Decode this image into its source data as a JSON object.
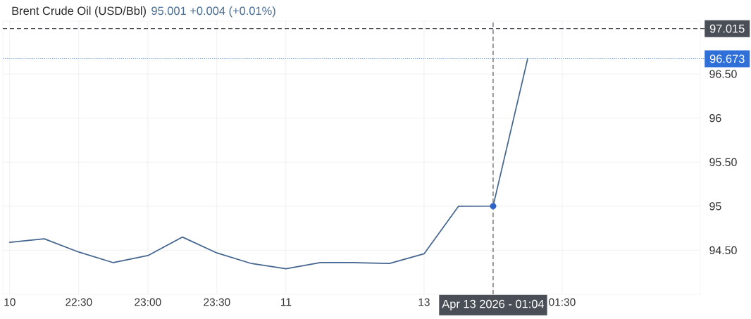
{
  "chart_data": {
    "type": "line",
    "title": "Brent Crude Oil (USD/Bbl)",
    "subtitle": "95.001 +0.004 (+0.01%)",
    "categories": [
      "10",
      null,
      "22:30",
      null,
      "23:00",
      null,
      "23:30",
      null,
      "11",
      null,
      null,
      null,
      "13",
      null,
      "Apr 13 2026 - 01:04",
      null,
      "01:30",
      null,
      null,
      null,
      null
    ],
    "ylim": [
      94.0,
      97.1
    ],
    "yticks": [
      {
        "value": 94.5,
        "label": "94.50"
      },
      95,
      {
        "value": 95.5,
        "label": "95.50"
      },
      96,
      {
        "value": 96.5,
        "label": "96.50"
      }
    ],
    "grid": true,
    "series": [
      {
        "color": "#44658f",
        "line_style": "solid",
        "values": [
          94.59,
          94.63,
          94.48,
          94.36,
          94.44,
          94.65,
          94.47,
          94.35,
          94.29,
          94.36,
          94.36,
          94.35,
          94.46,
          95.0,
          95.001,
          96.673,
          null,
          null,
          null,
          null,
          null
        ]
      },
      {
        "type": "scatter",
        "color": "#2f62c8",
        "marker": "circle",
        "values": [
          null,
          null,
          null,
          null,
          null,
          null,
          null,
          null,
          null,
          null,
          null,
          null,
          null,
          null,
          95.001,
          null,
          null,
          null,
          null,
          null,
          null
        ]
      }
    ],
    "ref_lines": [
      {
        "axis": "y",
        "value": 97.015,
        "label": "97.015",
        "color": "#4a4f57",
        "line_style": "dashed"
      },
      {
        "axis": "y",
        "value": 96.673,
        "label": "96.673",
        "color": "#2f6fd8",
        "line_style": "dotted"
      },
      {
        "axis": "x",
        "value": "Apr 13 2026 - 01:04",
        "color": "#4a4f57",
        "line_style": "dashed"
      }
    ]
  }
}
